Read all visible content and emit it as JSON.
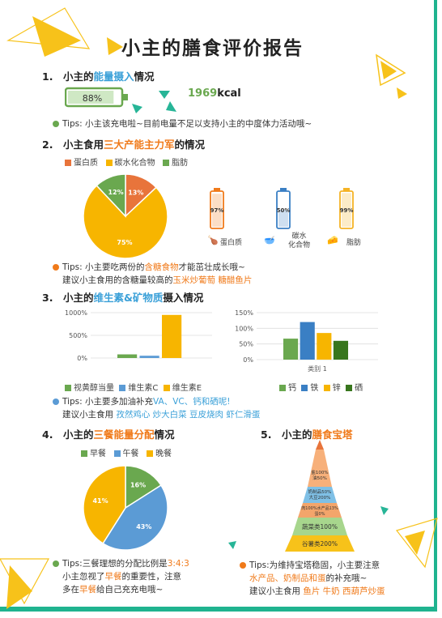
{
  "title": "小主的膳食评价报告",
  "s1": {
    "num": "1.",
    "title_pre": "小主的",
    "title_hl": "能量摄入",
    "title_post": "情况",
    "battery_pct": "88%",
    "battery_fill": 0.88,
    "kcal": "1969",
    "kcal_unit": "kcal",
    "tip": "Tips: 小主该充电啦~目前电量不足以支持小主的中度体力活动哦~"
  },
  "s2": {
    "num": "2.",
    "title_pre": "小主食用",
    "title_hl": "三大产能主力军",
    "title_post": "的情况",
    "legend": [
      "蛋白质",
      "碳水化合物",
      "脂肪"
    ],
    "tip_line1_pre": "Tips: 小主要吃两份的",
    "tip_line1_hl": "含糖食物",
    "tip_line1_post": "才能茁壮成长哦~",
    "tip_line2_pre": "建议小主食用的含糖量较高的",
    "tip_line2_hl": "玉米炒葡萄 糖醋鱼片",
    "batteries": [
      {
        "pct": "97%",
        "label": "蛋白质",
        "fill": 0.97,
        "color": "#f07a1a"
      },
      {
        "pct": "50%",
        "label": "碳水\n化合物",
        "fill": 0.5,
        "color": "#3a7fc4"
      },
      {
        "pct": "99%",
        "label": "脂肪",
        "fill": 0.99,
        "color": "#f5b324"
      }
    ]
  },
  "s3": {
    "num": "3.",
    "title_pre": "小主的",
    "title_hl": "维生素&矿物质",
    "title_post": "摄入情况",
    "chartA_legend": [
      "视黄醇当量",
      "维生素C",
      "维生素E"
    ],
    "chartB_legend": [
      "钙",
      "铁",
      "锌",
      "硒"
    ],
    "chartB_xlabel": "类别 1",
    "tip_line1_pre": "Tips: 小主要多加油补充",
    "tip_line1_hl": "VA、VC、钙和硒呢!",
    "tip_line2_pre": "建议小主食用",
    "tip_line2_hl": "孜然鸡心 炒大白菜 豆皮烧肉 虾仁滑蛋"
  },
  "s4": {
    "num": "4.",
    "title_pre": "小主的",
    "title_hl": "三餐能量分配",
    "title_post": "情况",
    "legend": [
      "早餐",
      "午餐",
      "晚餐"
    ],
    "tip_line1_pre": "Tips:三餐理想的分配比例是",
    "tip_line1_hl": "3:4:3",
    "tip_line2_pre": "小主忽视了",
    "tip_line2_hl": "早餐",
    "tip_line2_post": "的重要性，注意",
    "tip_line3_pre": "多在",
    "tip_line3_hl": "早餐",
    "tip_line3_post": "给自己充充电哦~"
  },
  "s5": {
    "num": "5.",
    "title_pre": "小主的",
    "title_hl": "膳食宝塔",
    "levels": [
      "盐100%\n油50%",
      "奶制品50%\n大豆200%",
      "肉100%水产品13%\n蛋0%",
      "蔬菜类100%",
      "谷薯类200%"
    ],
    "tip_line1": "Tips:为维持宝塔稳固，小主要注意",
    "tip_line2_hl": "水产品、奶制品和蛋",
    "tip_line2_post": "的补充哦~",
    "tip_line3_pre": "建议小主食用",
    "tip_line3_hl": "鱼片 牛奶 西葫芦炒蛋"
  },
  "chart_data": [
    {
      "type": "pie",
      "categories": [
        "蛋白质",
        "碳水化合物",
        "脂肪"
      ],
      "values": [
        13,
        75,
        12
      ],
      "labels": [
        "13%",
        "75%",
        "12%"
      ],
      "colors": [
        "#e8743b",
        "#f7b500",
        "#6aa84f"
      ]
    },
    {
      "type": "bar",
      "categories": [
        "视黄醇当量",
        "维生素C",
        "维生素E"
      ],
      "values": [
        80,
        50,
        950
      ],
      "yticks": [
        "1000%",
        "500%",
        "0%"
      ],
      "ylim": [
        0,
        1000
      ],
      "colors": [
        "#6aa84f",
        "#5b9bd5",
        "#f7b500"
      ]
    },
    {
      "type": "bar",
      "categories": [
        "钙",
        "铁",
        "锌",
        "硒"
      ],
      "values": [
        67,
        120,
        85,
        60
      ],
      "yticks": [
        "150%",
        "100%",
        "50%",
        "0%"
      ],
      "ylim": [
        0,
        150
      ],
      "xlabel": "类别 1",
      "colors": [
        "#6aa84f",
        "#3a7fc4",
        "#f7b500",
        "#38761d"
      ]
    },
    {
      "type": "pie",
      "categories": [
        "早餐",
        "午餐",
        "晚餐"
      ],
      "values": [
        16,
        43,
        41
      ],
      "labels": [
        "16%",
        "43%",
        "41%"
      ],
      "colors": [
        "#6aa84f",
        "#5b9bd5",
        "#f7b500"
      ]
    }
  ]
}
